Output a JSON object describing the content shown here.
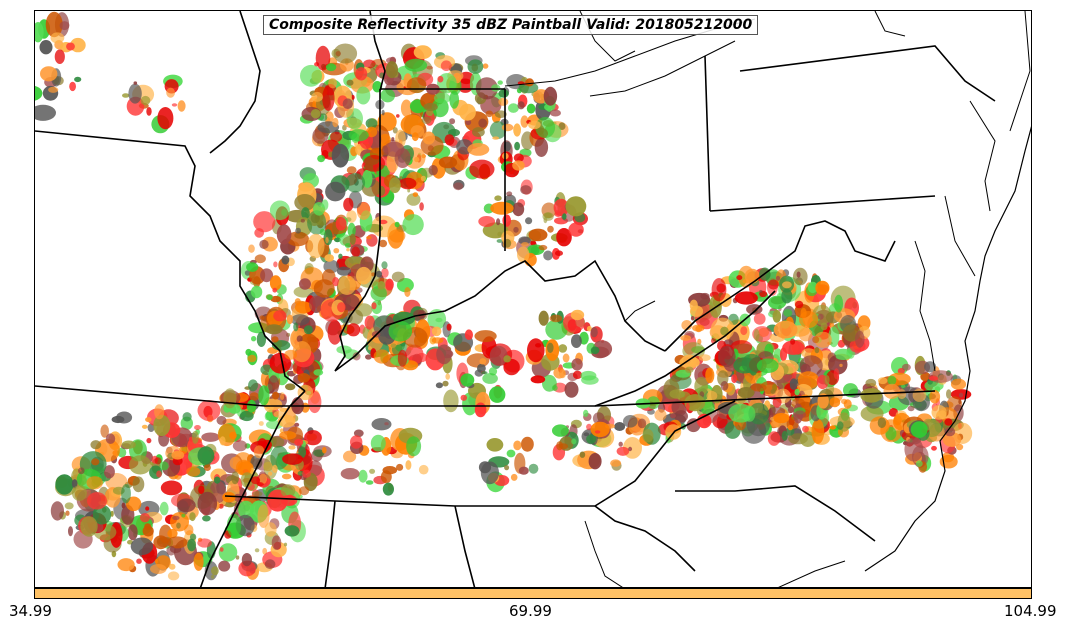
{
  "title": "Composite Reflectivity 35 dBZ Paintball Valid: 201805212000",
  "colorbar": {
    "color": "#ffc266",
    "ticks": [
      "34.99",
      "69.99",
      "104.99"
    ]
  },
  "member_colors": [
    "#ff3333",
    "#e60000",
    "#ff9933",
    "#ff8000",
    "#ffb347",
    "#33cc33",
    "#55dd55",
    "#2e8b3e",
    "#9a9a33",
    "#8b3a3a",
    "#a04848",
    "#555555",
    "#8a7a2a",
    "#cc5500"
  ]
}
